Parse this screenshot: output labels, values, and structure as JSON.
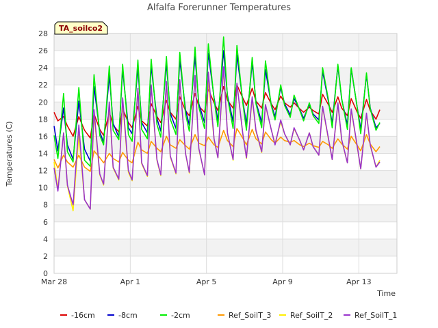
{
  "chart_data": {
    "type": "line",
    "title": "Alfalfa Forerunner Temperatures",
    "xlabel": "Time",
    "ylabel": "Temperatures (C)",
    "badge": "TA_soilco2",
    "xlim": [
      0,
      18
    ],
    "ylim": [
      0,
      28
    ],
    "yticks": [
      0,
      2,
      4,
      6,
      8,
      10,
      12,
      14,
      16,
      18,
      20,
      22,
      24,
      26,
      28
    ],
    "xticks": [
      {
        "label": "Mar 28",
        "value": 0
      },
      {
        "label": "Apr 1",
        "value": 4
      },
      {
        "label": "Apr 5",
        "value": 8
      },
      {
        "label": "Apr 9",
        "value": 12
      },
      {
        "label": "Apr 13",
        "value": 16
      }
    ],
    "grid": true,
    "legend_position": "bottom",
    "series": [
      {
        "name": "-16cm",
        "color": "#dd0000",
        "x": [
          0.0,
          0.2,
          0.5,
          0.7,
          1.0,
          1.3,
          1.6,
          1.9,
          2.1,
          2.4,
          2.6,
          2.9,
          3.1,
          3.4,
          3.6,
          3.9,
          4.1,
          4.4,
          4.6,
          4.9,
          5.1,
          5.4,
          5.6,
          5.9,
          6.1,
          6.4,
          6.6,
          6.9,
          7.1,
          7.4,
          7.6,
          7.9,
          8.1,
          8.4,
          8.6,
          8.9,
          9.1,
          9.4,
          9.6,
          9.9,
          10.1,
          10.4,
          10.6,
          10.9,
          11.1,
          11.4,
          11.6,
          11.9,
          12.1,
          12.4,
          12.6,
          12.9,
          13.1,
          13.4,
          13.6,
          13.9,
          14.1,
          14.4,
          14.6,
          14.9,
          15.1,
          15.4,
          15.6,
          15.9,
          16.1,
          16.4,
          16.6,
          16.9,
          17.1
        ],
        "y": [
          18.8,
          17.8,
          18.3,
          17.2,
          16.0,
          18.3,
          16.7,
          15.8,
          18.6,
          16.8,
          16.1,
          18.8,
          17.3,
          16.5,
          19.2,
          17.6,
          17.0,
          19.5,
          17.8,
          17.2,
          19.8,
          18.3,
          17.6,
          20.2,
          18.8,
          18.0,
          20.6,
          19.0,
          18.4,
          21.0,
          19.5,
          18.8,
          21.5,
          19.9,
          19.0,
          21.8,
          20.2,
          19.3,
          22.0,
          20.5,
          19.6,
          21.6,
          20.1,
          19.3,
          21.1,
          19.8,
          19.1,
          20.7,
          19.9,
          19.4,
          19.9,
          19.2,
          18.8,
          19.4,
          19.0,
          18.6,
          20.9,
          19.7,
          18.8,
          20.6,
          19.3,
          18.4,
          20.4,
          18.9,
          18.1,
          20.3,
          19.0,
          18.0,
          19.1
        ]
      },
      {
        "name": "-8cm",
        "color": "#0000cc",
        "x": [
          0.0,
          0.2,
          0.5,
          0.7,
          1.0,
          1.3,
          1.6,
          1.9,
          2.1,
          2.4,
          2.6,
          2.9,
          3.1,
          3.4,
          3.6,
          3.9,
          4.1,
          4.4,
          4.6,
          4.9,
          5.1,
          5.4,
          5.6,
          5.9,
          6.1,
          6.4,
          6.6,
          6.9,
          7.1,
          7.4,
          7.6,
          7.9,
          8.1,
          8.4,
          8.6,
          8.9,
          9.1,
          9.4,
          9.6,
          9.9,
          10.1,
          10.4,
          10.6,
          10.9,
          11.1,
          11.4,
          11.6,
          11.9,
          12.1,
          12.4,
          12.6,
          12.9,
          13.1,
          13.4,
          13.6,
          13.9,
          14.1,
          14.4,
          14.6,
          14.9,
          15.1,
          15.4,
          15.6,
          15.9,
          16.1,
          16.4,
          16.6,
          16.9,
          17.1
        ],
        "y": [
          17.2,
          14.3,
          19.3,
          15.0,
          13.3,
          20.1,
          14.5,
          13.1,
          21.8,
          16.5,
          15.3,
          23.1,
          17.5,
          15.9,
          23.8,
          17.0,
          16.3,
          24.0,
          17.6,
          16.4,
          24.2,
          18.1,
          16.6,
          24.5,
          18.7,
          16.9,
          24.9,
          19.1,
          17.3,
          25.3,
          19.8,
          17.6,
          25.7,
          20.5,
          17.8,
          26.0,
          20.8,
          17.7,
          25.5,
          20.2,
          17.4,
          24.6,
          20.0,
          17.6,
          23.8,
          19.7,
          18.3,
          21.7,
          19.8,
          18.5,
          20.4,
          19.1,
          18.1,
          19.7,
          18.6,
          17.9,
          23.6,
          20.1,
          17.5,
          24.2,
          20.3,
          17.3,
          23.9,
          19.6,
          16.8,
          23.2,
          19.3,
          17.0,
          17.5
        ]
      },
      {
        "name": "-2cm",
        "color": "#00ee00",
        "x": [
          0.0,
          0.2,
          0.5,
          0.7,
          1.0,
          1.3,
          1.6,
          1.9,
          2.1,
          2.4,
          2.6,
          2.9,
          3.1,
          3.4,
          3.6,
          3.9,
          4.1,
          4.4,
          4.6,
          4.9,
          5.1,
          5.4,
          5.6,
          5.9,
          6.1,
          6.4,
          6.6,
          6.9,
          7.1,
          7.4,
          7.6,
          7.9,
          8.1,
          8.4,
          8.6,
          8.9,
          9.1,
          9.4,
          9.6,
          9.9,
          10.1,
          10.4,
          10.6,
          10.9,
          11.1,
          11.4,
          11.6,
          11.9,
          12.1,
          12.4,
          12.6,
          12.9,
          13.1,
          13.4,
          13.6,
          13.9,
          14.1,
          14.4,
          14.6,
          14.9,
          15.1,
          15.4,
          15.6,
          15.9,
          16.1,
          16.4,
          16.6,
          16.9,
          17.1
        ],
        "y": [
          16.1,
          13.4,
          21.0,
          14.2,
          13.0,
          21.7,
          13.2,
          12.5,
          23.2,
          16.1,
          15.0,
          24.2,
          16.7,
          15.6,
          24.4,
          16.2,
          15.4,
          24.9,
          16.8,
          15.7,
          25.0,
          17.4,
          15.9,
          25.3,
          18.0,
          16.2,
          25.8,
          18.6,
          16.6,
          26.4,
          19.4,
          16.9,
          26.8,
          20.3,
          17.1,
          27.6,
          20.6,
          16.9,
          26.6,
          20.0,
          16.7,
          25.2,
          19.8,
          17.0,
          24.8,
          19.6,
          17.9,
          22.0,
          19.6,
          18.2,
          20.8,
          19.0,
          17.8,
          19.9,
          18.4,
          17.5,
          24.0,
          20.3,
          17.0,
          24.4,
          20.4,
          16.8,
          24.0,
          19.6,
          16.3,
          23.4,
          19.2,
          16.7,
          17.6
        ]
      },
      {
        "name": "Ref_SoilT_3",
        "color": "#ff9900",
        "x": [
          0.0,
          0.2,
          0.5,
          0.7,
          1.0,
          1.3,
          1.6,
          1.9,
          2.1,
          2.4,
          2.6,
          2.9,
          3.1,
          3.4,
          3.6,
          3.9,
          4.1,
          4.4,
          4.6,
          4.9,
          5.1,
          5.4,
          5.6,
          5.9,
          6.1,
          6.4,
          6.6,
          6.9,
          7.1,
          7.4,
          7.6,
          7.9,
          8.1,
          8.4,
          8.6,
          8.9,
          9.1,
          9.4,
          9.6,
          9.9,
          10.1,
          10.4,
          10.6,
          10.9,
          11.1,
          11.4,
          11.6,
          11.9,
          12.1,
          12.4,
          12.6,
          12.9,
          13.1,
          13.4,
          13.6,
          13.9,
          14.1,
          14.4,
          14.6,
          14.9,
          15.1,
          15.4,
          15.6,
          15.9,
          16.1,
          16.4,
          16.6,
          16.9,
          17.1
        ],
        "y": [
          13.3,
          12.3,
          13.8,
          13.0,
          12.4,
          13.8,
          12.4,
          11.9,
          14.3,
          13.5,
          12.9,
          14.0,
          13.4,
          13.0,
          14.1,
          13.2,
          12.9,
          15.3,
          14.4,
          14.0,
          15.4,
          14.6,
          14.2,
          16.0,
          15.0,
          14.6,
          15.6,
          14.9,
          14.5,
          16.2,
          15.2,
          14.9,
          15.9,
          15.0,
          14.7,
          16.7,
          15.5,
          14.8,
          16.9,
          15.8,
          15.0,
          16.8,
          15.7,
          15.1,
          16.5,
          15.6,
          15.2,
          15.9,
          15.5,
          15.3,
          15.5,
          15.0,
          14.8,
          15.2,
          14.9,
          14.7,
          15.4,
          15.0,
          14.6,
          15.7,
          15.1,
          14.5,
          16.0,
          15.0,
          14.3,
          16.2,
          15.1,
          14.2,
          14.8
        ]
      },
      {
        "name": "Ref_SoilT_2",
        "color": "#ffee00",
        "x": [
          0.0,
          0.2,
          0.5,
          0.7,
          1.0,
          1.3,
          1.6,
          1.9,
          2.1,
          2.4,
          2.6,
          2.9,
          3.1,
          3.4,
          3.6,
          3.9,
          4.1,
          4.4,
          4.6,
          4.9,
          5.1,
          5.4,
          5.6,
          5.9,
          6.1,
          6.4,
          6.6,
          6.9,
          7.1,
          7.4,
          7.6,
          7.9,
          8.1,
          8.4,
          8.6,
          8.9,
          9.1,
          9.4,
          9.6,
          9.9,
          10.1,
          10.4,
          10.6,
          10.9,
          11.1,
          11.4,
          11.6,
          11.9,
          12.1,
          12.4,
          12.6,
          12.9,
          13.1,
          13.4,
          13.6,
          13.9,
          14.1,
          14.4,
          14.6,
          14.9,
          15.1,
          15.4,
          15.6,
          15.9,
          16.1,
          16.4,
          16.6,
          16.9,
          17.1
        ],
        "y": [
          13.0,
          9.8,
          16.4,
          10.2,
          7.3,
          16.2,
          8.6,
          7.5,
          18.6,
          11.5,
          10.3,
          19.6,
          12.3,
          10.9,
          20.0,
          11.8,
          10.8,
          21.6,
          12.8,
          11.3,
          21.9,
          13.2,
          11.4,
          22.3,
          13.6,
          11.6,
          22.5,
          14.0,
          11.7,
          23.0,
          14.5,
          11.5,
          22.6,
          15.6,
          13.5,
          23.8,
          16.4,
          13.2,
          22.1,
          16.4,
          13.4,
          20.4,
          16.6,
          14.1,
          19.6,
          16.8,
          15.1,
          17.7,
          16.3,
          15.0,
          16.9,
          15.5,
          14.4,
          16.4,
          14.8,
          13.8,
          19.4,
          15.7,
          13.3,
          19.8,
          15.5,
          12.9,
          19.1,
          15.0,
          12.2,
          18.6,
          14.9,
          12.4,
          13.2
        ]
      },
      {
        "name": "Ref_SoilT_1",
        "color": "#9933cc",
        "x": [
          0.0,
          0.2,
          0.5,
          0.7,
          1.0,
          1.3,
          1.6,
          1.9,
          2.1,
          2.4,
          2.6,
          2.9,
          3.1,
          3.4,
          3.6,
          3.9,
          4.1,
          4.4,
          4.6,
          4.9,
          5.1,
          5.4,
          5.6,
          5.9,
          6.1,
          6.4,
          6.6,
          6.9,
          7.1,
          7.4,
          7.6,
          7.9,
          8.1,
          8.4,
          8.6,
          8.9,
          9.1,
          9.4,
          9.6,
          9.9,
          10.1,
          10.4,
          10.6,
          10.9,
          11.1,
          11.4,
          11.6,
          11.9,
          12.1,
          12.4,
          12.6,
          12.9,
          13.1,
          13.4,
          13.6,
          13.9,
          14.1,
          14.4,
          14.6,
          14.9,
          15.1,
          15.4,
          15.6,
          15.9,
          16.1,
          16.4,
          16.6,
          16.9,
          17.1
        ],
        "y": [
          12.3,
          9.6,
          16.4,
          10.3,
          8.0,
          17.3,
          8.6,
          7.5,
          19.1,
          11.6,
          10.4,
          20.0,
          12.4,
          11.0,
          20.5,
          12.0,
          10.9,
          21.6,
          12.9,
          11.4,
          22.0,
          13.3,
          11.5,
          22.4,
          13.7,
          11.7,
          22.6,
          14.0,
          11.8,
          23.1,
          14.6,
          11.5,
          23.5,
          15.7,
          13.5,
          24.1,
          16.4,
          13.3,
          22.2,
          16.4,
          13.5,
          20.6,
          16.7,
          14.2,
          19.7,
          16.8,
          15.0,
          17.9,
          16.3,
          15.0,
          17.0,
          15.5,
          14.4,
          16.4,
          14.8,
          13.8,
          19.5,
          15.8,
          13.3,
          19.9,
          15.6,
          12.9,
          19.2,
          15.1,
          12.2,
          18.7,
          15.0,
          12.4,
          13.0
        ]
      }
    ]
  }
}
